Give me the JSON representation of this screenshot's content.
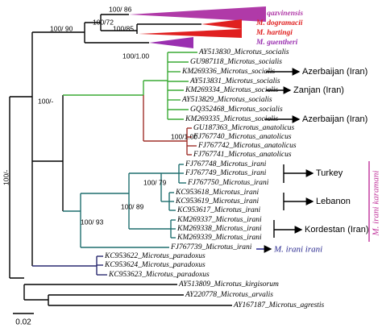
{
  "clades": [
    "M. qazvinensis",
    "M. dogramacii",
    "M. hartingi",
    "M. guentheri"
  ],
  "node_supports": [
    "100/ 86",
    "100/72",
    "100/85",
    "100/ 90",
    "100/1.00",
    "100/-",
    "100/1.00",
    "100/ 79",
    "100/ 89",
    "100/ 93",
    "100/-"
  ],
  "leaves": [
    "AY513830_Microtus_socialis",
    "GU987118_Microtus_socialis",
    "KM269336_Microtus_socialis",
    "AY513831_Microtus_socialis",
    "KM269334_Microtus_socialis",
    "AY513829_Microtus_socialis",
    "GQ352468_Microtus_socialis",
    "KM269335_Microtus_socialis",
    "GU187363_Microtus_anatolicus",
    "FJ767740_Microtus_anatolicus",
    "FJ767742_Microtus_anatolicus",
    "FJ767741_Microtus_anatolicus",
    "FJ767748_Microtus_irani",
    "FJ767749_Microtus_irani",
    "FJ767750_Microtus_irani",
    "KC953618_Microtus_irani",
    "KC953619_Microtus_irani",
    "KC953617_Microtus_irani",
    "KM269337_Microtus_irani",
    "KM269338_Microtus_irani",
    "KM269339_Microtus_irani",
    "FJ767739_Microtus_irani",
    "KC953622_Microtus_paradoxus",
    "KC953624_Microtus_paradoxus",
    "KC953623_Microtus_paradoxus",
    "AY513809_Microtus_kirgisorum",
    "AY220778_Microtus_arvalis",
    "AY167187_Microtus_agrestis"
  ],
  "localities": [
    "Azerbaijan (Iran)",
    "Zanjan (Iran)",
    "Azerbaijan (Iran)",
    "Turkey",
    "Lebanon",
    "Kordestan (Iran)"
  ],
  "subspecies": [
    "M. irani irani",
    "M. irani karamani"
  ],
  "scale_bar": "0.02"
}
